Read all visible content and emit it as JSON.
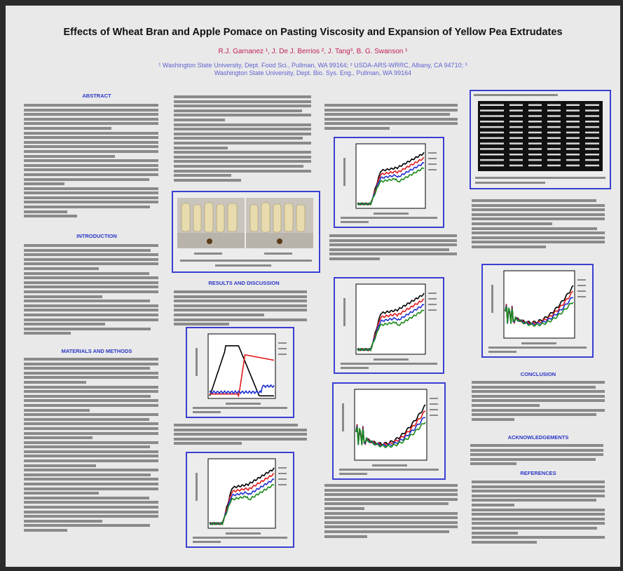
{
  "poster": {
    "title": "Effects of Wheat Bran and Apple Pomace on Pasting Viscosity and Expansion of Yellow Pea Extrudates",
    "authors": "R.J. Garnanez ¹, J. De J. Berrios ², J. Tang³, B. G. Swanson ¹",
    "affiliation_line1": "¹ Washington State University, Dept. Food Sci., Pullman, WA 99164; ² USDA-ARS-WRRC, Albany, CA 94710; ³",
    "affiliation_line2": "Washington State University, Dept. Bio. Sys. Eng., Pullman, WA 99164"
  },
  "sections": {
    "abstract": "ABSTRACT",
    "introduction": "INTRODUCTION",
    "materials_methods": "MATERIALS AND METHODS",
    "results_discussion": "RESULTS AND DISCUSSION",
    "conclusion": "CONCLUSION",
    "acknowledgements": "ACKNOWLEDGEMENTS",
    "references": "REFERENCES"
  },
  "colors": {
    "frame": "#3a3fd2",
    "heading": "#2b36c8",
    "author": "#c0205a",
    "affiliation": "#5f63d0",
    "series": [
      "#000000",
      "#e01a1a",
      "#1f2fd0",
      "#1a8a1a"
    ]
  }
}
